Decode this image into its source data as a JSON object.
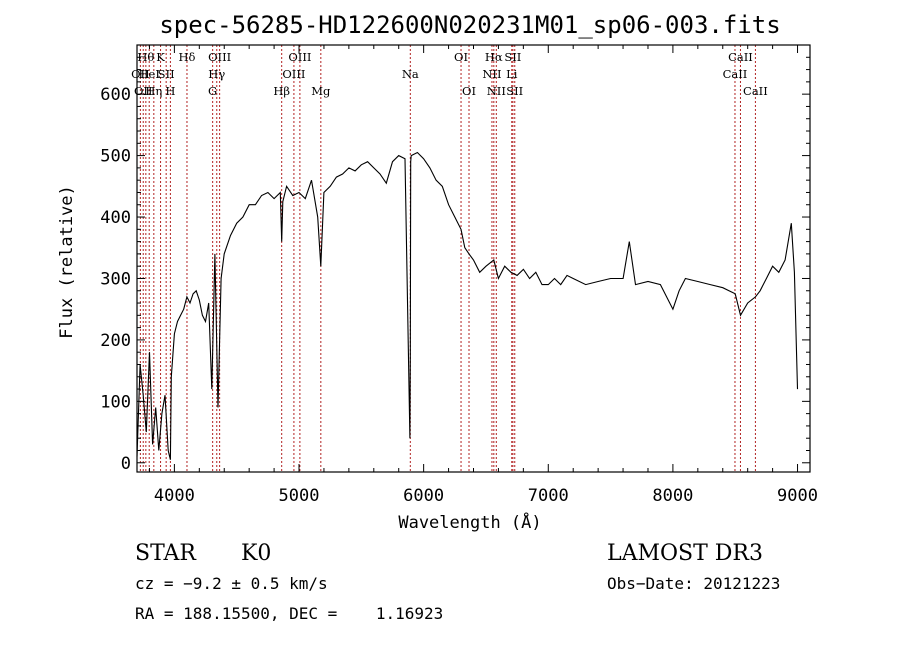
{
  "chart_data": {
    "type": "line",
    "title": "spec-56285-HD122600N020231M01_sp06-003.fits",
    "xlabel": "Wavelength (Å)",
    "ylabel": "Flux (relative)",
    "xlim": [
      3700,
      9100
    ],
    "ylim": [
      -15,
      680
    ],
    "xticks": [
      "4000",
      "5000",
      "6000",
      "7000",
      "8000",
      "9000"
    ],
    "xtick_values": [
      4000,
      5000,
      6000,
      7000,
      8000,
      9000
    ],
    "yticks": [
      "0",
      "100",
      "200",
      "300",
      "400",
      "500",
      "600"
    ],
    "ytick_values": [
      0,
      100,
      200,
      300,
      400,
      500,
      600
    ],
    "grid": false,
    "line_color": "#000000",
    "marker_color": "#b22222",
    "series": [
      {
        "x": [
          3700,
          3725,
          3750,
          3775,
          3800,
          3825,
          3850,
          3875,
          3900,
          3925,
          3950,
          3968,
          3975,
          4000,
          4025,
          4050,
          4075,
          4100,
          4125,
          4150,
          4175,
          4200,
          4225,
          4250,
          4275,
          4300,
          4325,
          4350,
          4375,
          4400,
          4450,
          4500,
          4550,
          4600,
          4650,
          4700,
          4750,
          4800,
          4850,
          4861,
          4870,
          4900,
          4950,
          5000,
          5050,
          5100,
          5150,
          5175,
          5200,
          5250,
          5300,
          5350,
          5400,
          5450,
          5500,
          5550,
          5600,
          5650,
          5700,
          5750,
          5800,
          5850,
          5890,
          5893,
          5896,
          5900,
          5950,
          6000,
          6050,
          6100,
          6150,
          6200,
          6250,
          6300,
          6330,
          6364,
          6400,
          6450,
          6500,
          6563,
          6600,
          6650,
          6700,
          6750,
          6800,
          6850,
          6900,
          6950,
          7000,
          7050,
          7100,
          7150,
          7200,
          7300,
          7400,
          7500,
          7600,
          7650,
          7700,
          7800,
          7900,
          8000,
          8050,
          8100,
          8200,
          8300,
          8400,
          8450,
          8500,
          8542,
          8600,
          8662,
          8700,
          8750,
          8800,
          8850,
          8900,
          8950,
          8975,
          9000
        ],
        "y": [
          10,
          160,
          110,
          50,
          180,
          30,
          90,
          20,
          80,
          110,
          20,
          5,
          140,
          210,
          230,
          240,
          250,
          270,
          260,
          275,
          280,
          265,
          240,
          230,
          260,
          120,
          340,
          90,
          300,
          340,
          370,
          390,
          400,
          420,
          420,
          435,
          440,
          430,
          440,
          360,
          425,
          450,
          435,
          440,
          430,
          460,
          400,
          320,
          440,
          450,
          465,
          470,
          480,
          475,
          485,
          490,
          480,
          470,
          455,
          490,
          500,
          495,
          40,
          170,
          490,
          500,
          505,
          495,
          480,
          460,
          450,
          420,
          400,
          380,
          350,
          340,
          330,
          310,
          320,
          330,
          300,
          320,
          310,
          305,
          315,
          300,
          310,
          290,
          290,
          300,
          290,
          305,
          300,
          290,
          295,
          300,
          300,
          360,
          290,
          295,
          290,
          250,
          280,
          300,
          295,
          290,
          285,
          280,
          275,
          240,
          260,
          270,
          280,
          300,
          320,
          310,
          330,
          390,
          310,
          120
        ]
      }
    ],
    "line_markers": [
      {
        "x": 3727,
        "label": "OII",
        "row": 2
      },
      {
        "x": 3750,
        "label": "OII",
        "row": 3
      },
      {
        "x": 3771,
        "label": "Hθ",
        "row": 1
      },
      {
        "x": 3798,
        "label": "HeI",
        "row": 2
      },
      {
        "x": 3835,
        "label": "Hη",
        "row": 3
      },
      {
        "x": 3889,
        "label": "K",
        "row": 1
      },
      {
        "x": 3934,
        "label": "SII",
        "row": 2
      },
      {
        "x": 3968,
        "label": "H",
        "row": 3
      },
      {
        "x": 4101,
        "label": "Hδ",
        "row": 1
      },
      {
        "x": 4307,
        "label": "G",
        "row": 3
      },
      {
        "x": 4340,
        "label": "Hγ",
        "row": 2
      },
      {
        "x": 4363,
        "label": "OIII",
        "row": 1
      },
      {
        "x": 4861,
        "label": "Hβ",
        "row": 3
      },
      {
        "x": 4959,
        "label": "OIII",
        "row": 2
      },
      {
        "x": 5007,
        "label": "OIII",
        "row": 1
      },
      {
        "x": 5175,
        "label": "Mg",
        "row": 3
      },
      {
        "x": 5893,
        "label": "Na",
        "row": 2
      },
      {
        "x": 6300,
        "label": "OI",
        "row": 1
      },
      {
        "x": 6364,
        "label": "OI",
        "row": 3
      },
      {
        "x": 6548,
        "label": "NII",
        "row": 2
      },
      {
        "x": 6563,
        "label": "Hα",
        "row": 1
      },
      {
        "x": 6583,
        "label": "NII",
        "row": 3
      },
      {
        "x": 6707,
        "label": "Li",
        "row": 2
      },
      {
        "x": 6716,
        "label": "SII",
        "row": 1
      },
      {
        "x": 6731,
        "label": "SII",
        "row": 3
      },
      {
        "x": 8498,
        "label": "CaII",
        "row": 2
      },
      {
        "x": 8542,
        "label": "CaII",
        "row": 1
      },
      {
        "x": 8662,
        "label": "CaII",
        "row": 3
      }
    ]
  },
  "footer": {
    "object_class": "STAR",
    "subclass": "K0",
    "survey": "LAMOST DR3",
    "cz_line": "cz = −9.2 ± 0.5 km/s",
    "obs_date": "Obs−Date: 20121223",
    "coords": "RA = 188.15500, DEC =    1.16923"
  }
}
